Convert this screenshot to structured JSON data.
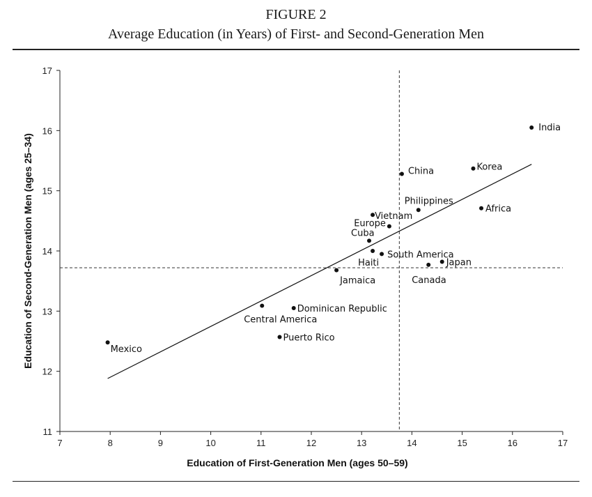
{
  "figure": {
    "number": "FIGURE 2",
    "title": "Average Education (in Years) of First- and Second-Generation Men"
  },
  "chart_data": {
    "type": "scatter",
    "xlabel": "Education of First-Generation  Men (ages 50–59)",
    "ylabel": "Education of Second-Generation  Men (ages 25–34)",
    "xlim": [
      7,
      17
    ],
    "ylim": [
      11,
      17
    ],
    "xticks": [
      "7",
      "8",
      "9",
      "10",
      "11",
      "12",
      "13",
      "14",
      "15",
      "16",
      "17"
    ],
    "yticks": [
      "11",
      "12",
      "13",
      "14",
      "15",
      "16",
      "17"
    ],
    "grid": false,
    "points": [
      {
        "label": "India",
        "x": 16.38,
        "y": 16.05
      },
      {
        "label": "China",
        "x": 13.8,
        "y": 15.28
      },
      {
        "label": "Korea",
        "x": 15.22,
        "y": 15.37
      },
      {
        "label": "Philippines",
        "x": 14.13,
        "y": 14.68
      },
      {
        "label": "Africa",
        "x": 15.38,
        "y": 14.71
      },
      {
        "label": "Vietnam",
        "x": 13.22,
        "y": 14.6
      },
      {
        "label": "Europe",
        "x": 13.55,
        "y": 14.41
      },
      {
        "label": "Cuba",
        "x": 13.15,
        "y": 14.17
      },
      {
        "label": "Haiti",
        "x": 13.22,
        "y": 14.0
      },
      {
        "label": "South America",
        "x": 13.4,
        "y": 13.95
      },
      {
        "label": "Japan",
        "x": 14.6,
        "y": 13.82
      },
      {
        "label": "Canada",
        "x": 14.33,
        "y": 13.77
      },
      {
        "label": "Jamaica",
        "x": 12.5,
        "y": 13.68
      },
      {
        "label": "Central America",
        "x": 11.02,
        "y": 13.09
      },
      {
        "label": "Dominican Republic",
        "x": 11.65,
        "y": 13.05
      },
      {
        "label": "Puerto Rico",
        "x": 11.37,
        "y": 12.57
      },
      {
        "label": "Mexico",
        "x": 7.95,
        "y": 12.48
      }
    ],
    "fit_line": {
      "x": [
        7.95,
        16.38
      ],
      "y": [
        11.88,
        15.44
      ]
    },
    "reference_lines": {
      "x": 13.75,
      "y": 13.72
    }
  }
}
